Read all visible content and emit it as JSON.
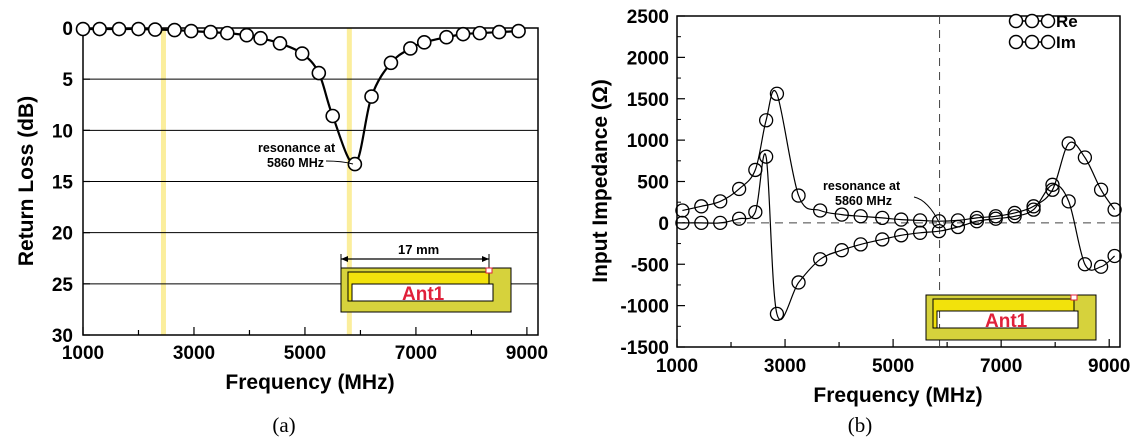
{
  "chart_data": [
    {
      "type": "line",
      "panel_caption": "(a)",
      "xlabel": "Frequency (MHz)",
      "ylabel": "Return Loss (dB)",
      "xlim": [
        1000,
        9200
      ],
      "ylim": [
        30,
        0
      ],
      "y_inverted": true,
      "xticks": [
        "1000",
        "3000",
        "5000",
        "7000",
        "9000"
      ],
      "yticks": [
        "0",
        "5",
        "10",
        "15",
        "20",
        "25",
        "30"
      ],
      "grid": "horizontal",
      "highlight_bands": [
        2450,
        5800
      ],
      "series": [
        {
          "style": "line-with-circle-markers",
          "x": [
            1000,
            1300,
            1650,
            2000,
            2300,
            2650,
            2950,
            3300,
            3600,
            3950,
            4200,
            4550,
            4950,
            5250,
            5500,
            5900,
            6200,
            6550,
            6900,
            7150,
            7550,
            7850,
            8150,
            8500,
            8850
          ],
          "y": [
            0.1,
            0.1,
            0.1,
            0.1,
            0.15,
            0.2,
            0.3,
            0.4,
            0.5,
            0.7,
            1.0,
            1.5,
            2.5,
            4.4,
            8.6,
            13.3,
            6.7,
            3.4,
            2.0,
            1.4,
            0.9,
            0.6,
            0.5,
            0.4,
            0.3
          ]
        }
      ],
      "annotation": [
        "resonance at",
        "5860 MHz"
      ],
      "inset": {
        "label": "Ant1",
        "dimension": "17 mm"
      }
    },
    {
      "type": "line",
      "panel_caption": "(b)",
      "xlabel": "Frequency (MHz)",
      "ylabel": "Input Impedance (Ω)",
      "xlim": [
        1000,
        9200
      ],
      "ylim": [
        -1500,
        2500
      ],
      "xticks": [
        "1000",
        "3000",
        "5000",
        "7000",
        "9000"
      ],
      "yticks": [
        "-1500",
        "-1000",
        "-500",
        "0",
        "500",
        "1000",
        "1500",
        "2000",
        "2500"
      ],
      "grid": false,
      "reference_lines": {
        "x": 5860,
        "y": 0
      },
      "series": [
        {
          "name": "Re",
          "x": [
            1100,
            1450,
            1800,
            2150,
            2450,
            2650,
            2850,
            3250,
            3650,
            4050,
            4400,
            4800,
            5150,
            5500,
            5850,
            6200,
            6550,
            6900,
            7250,
            7600,
            7950,
            8250,
            8550,
            8850,
            9100
          ],
          "y": [
            150,
            200,
            260,
            410,
            640,
            1240,
            1560,
            330,
            150,
            100,
            80,
            60,
            40,
            30,
            20,
            30,
            60,
            80,
            120,
            200,
            400,
            960,
            790,
            400,
            160
          ]
        },
        {
          "name": "Im",
          "x": [
            1100,
            1450,
            1800,
            2150,
            2450,
            2650,
            2850,
            3250,
            3650,
            4050,
            4400,
            4800,
            5150,
            5500,
            5850,
            6200,
            6550,
            6900,
            7250,
            7600,
            7950,
            8250,
            8550,
            8850,
            9100
          ],
          "y": [
            0,
            0,
            0,
            50,
            130,
            800,
            -1100,
            -720,
            -440,
            -330,
            -260,
            -200,
            -150,
            -120,
            -100,
            -50,
            20,
            50,
            80,
            160,
            460,
            260,
            -500,
            -530,
            -400
          ]
        }
      ],
      "annotation": [
        "resonance at",
        "5860 MHz"
      ],
      "inset": {
        "label": "Ant1"
      }
    }
  ]
}
